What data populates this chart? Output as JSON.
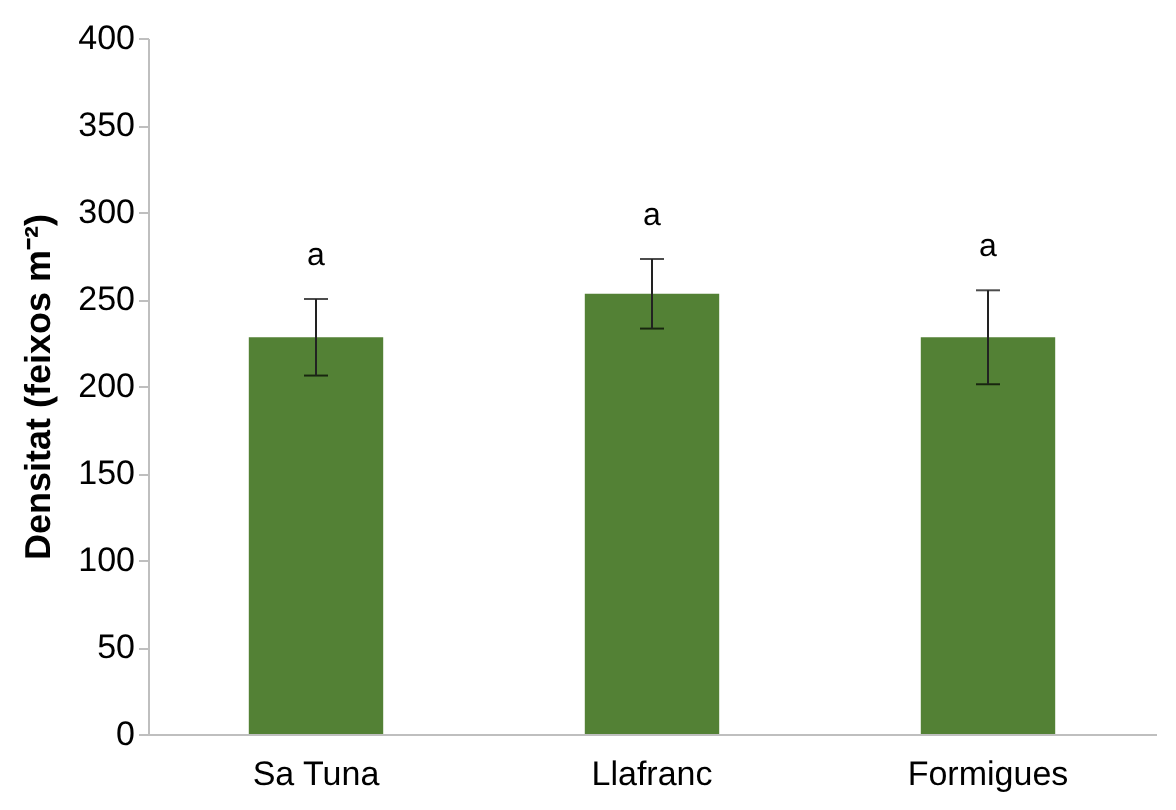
{
  "chart_data": {
    "type": "bar",
    "ylabel": "Densitat (feixos m⁻²)",
    "categories": [
      "Sa Tuna",
      "Llafranc",
      "Formigues"
    ],
    "values": [
      228,
      253,
      228
    ],
    "errors": [
      22,
      20,
      27
    ],
    "color": "#538135",
    "ylim": [
      0,
      400
    ],
    "yticks": [
      0,
      50,
      100,
      150,
      200,
      250,
      300,
      350,
      400
    ],
    "grid": false,
    "annotations": [
      "a",
      "a",
      "a"
    ]
  }
}
